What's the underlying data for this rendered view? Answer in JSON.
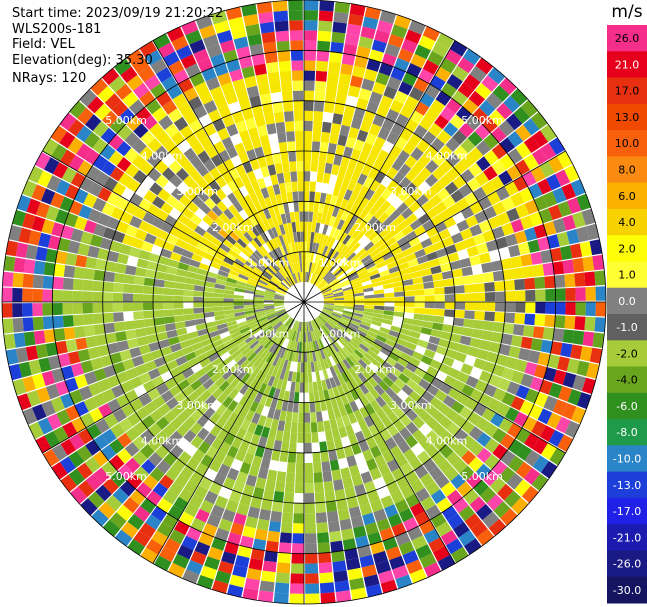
{
  "header": {
    "start_time": "Start time: 2023/09/19 21:20:22",
    "instrument": "WLS200s-181",
    "field": "Field: VEL",
    "elevation": "Elevation(deg): 35.30",
    "nrays": "NRays: 120"
  },
  "chart_data": {
    "type": "ppi",
    "field": "VEL",
    "nrays": 120,
    "elevation_deg": 35.3,
    "max_range_km": 6.0,
    "range_rings_km": [
      1.0,
      2.0,
      3.0,
      4.0,
      5.0,
      6.0
    ],
    "ring_labels": [
      "1.00km",
      "2.00km",
      "3.00km",
      "4.00km",
      "5.00km"
    ],
    "colorbar": {
      "unit": "m/s",
      "ticks": [
        "26.0",
        "21.0",
        "17.0",
        "13.0",
        "10.0",
        "8.0",
        "6.0",
        "4.0",
        "2.0",
        "1.0",
        "0.0",
        "-1.0",
        "-2.0",
        "-4.0",
        "-6.0",
        "-8.0",
        "-10.0",
        "-13.0",
        "-17.0",
        "-21.0",
        "-26.0",
        "-30.0"
      ],
      "colors": [
        "#f52e8c",
        "#e6001c",
        "#e83010",
        "#f04a00",
        "#f8600c",
        "#fb8a10",
        "#fbb002",
        "#f7d201",
        "#fdfd07",
        "#ffff33",
        "#808080",
        "#606060",
        "#a6cd39",
        "#6aa51e",
        "#2f8f1f",
        "#1e9a4a",
        "#2a84c8",
        "#1d3fd9",
        "#2020e6",
        "#1b1bb0",
        "#1a1a85",
        "#141460"
      ]
    }
  }
}
